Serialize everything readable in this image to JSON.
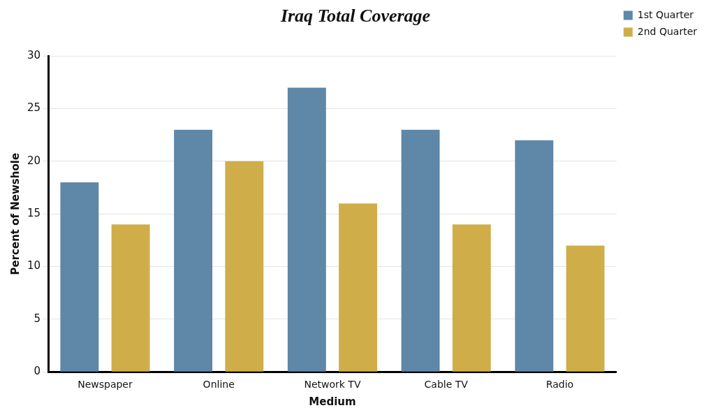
{
  "chart_data": {
    "type": "bar",
    "title": "Iraq Total Coverage",
    "xlabel": "Medium",
    "ylabel": "Percent of Newshole",
    "categories": [
      "Newspaper",
      "Online",
      "Network TV",
      "Cable TV",
      "Radio"
    ],
    "series": [
      {
        "name": "1st Quarter",
        "color": "#5e87a8",
        "values": [
          18,
          23,
          27,
          23,
          22
        ]
      },
      {
        "name": "2nd Quarter",
        "color": "#cfae4a",
        "values": [
          14,
          20,
          16,
          14,
          12
        ]
      }
    ],
    "ylim": [
      0,
      30
    ],
    "yticks": [
      0,
      5,
      10,
      15,
      20,
      25,
      30
    ],
    "grid": "y",
    "legend": "top right"
  }
}
